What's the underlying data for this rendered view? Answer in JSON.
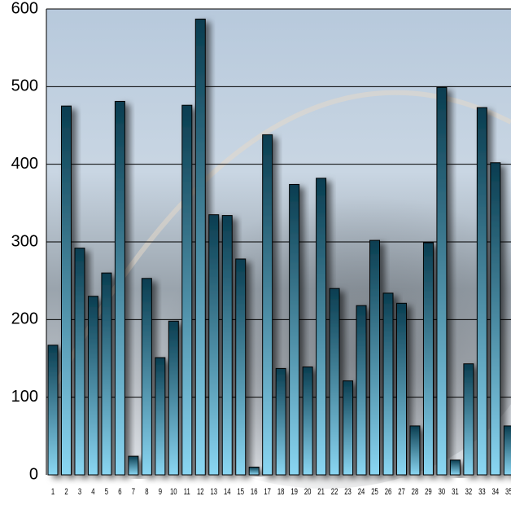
{
  "chart_data": {
    "type": "bar",
    "categories": [
      "1",
      "2",
      "3",
      "4",
      "5",
      "6",
      "7",
      "8",
      "9",
      "10",
      "11",
      "12",
      "13",
      "14",
      "15",
      "16",
      "17",
      "18",
      "19",
      "20",
      "21",
      "22",
      "23",
      "24",
      "25",
      "26",
      "27",
      "28",
      "29",
      "30",
      "31",
      "32",
      "33",
      "34",
      "35"
    ],
    "values": [
      167,
      475,
      292,
      230,
      260,
      481,
      24,
      253,
      151,
      198,
      476,
      587,
      335,
      334,
      278,
      10,
      438,
      137,
      374,
      139,
      382,
      240,
      121,
      218,
      302,
      234,
      221,
      63,
      299,
      499,
      19,
      143,
      473,
      402,
      63
    ],
    "gradient": [
      "#0a3d50",
      "#8ad6f2"
    ],
    "ylim": [
      0,
      600
    ],
    "yticks": [
      0,
      100,
      200,
      300,
      400,
      500,
      600
    ],
    "grid": true
  }
}
